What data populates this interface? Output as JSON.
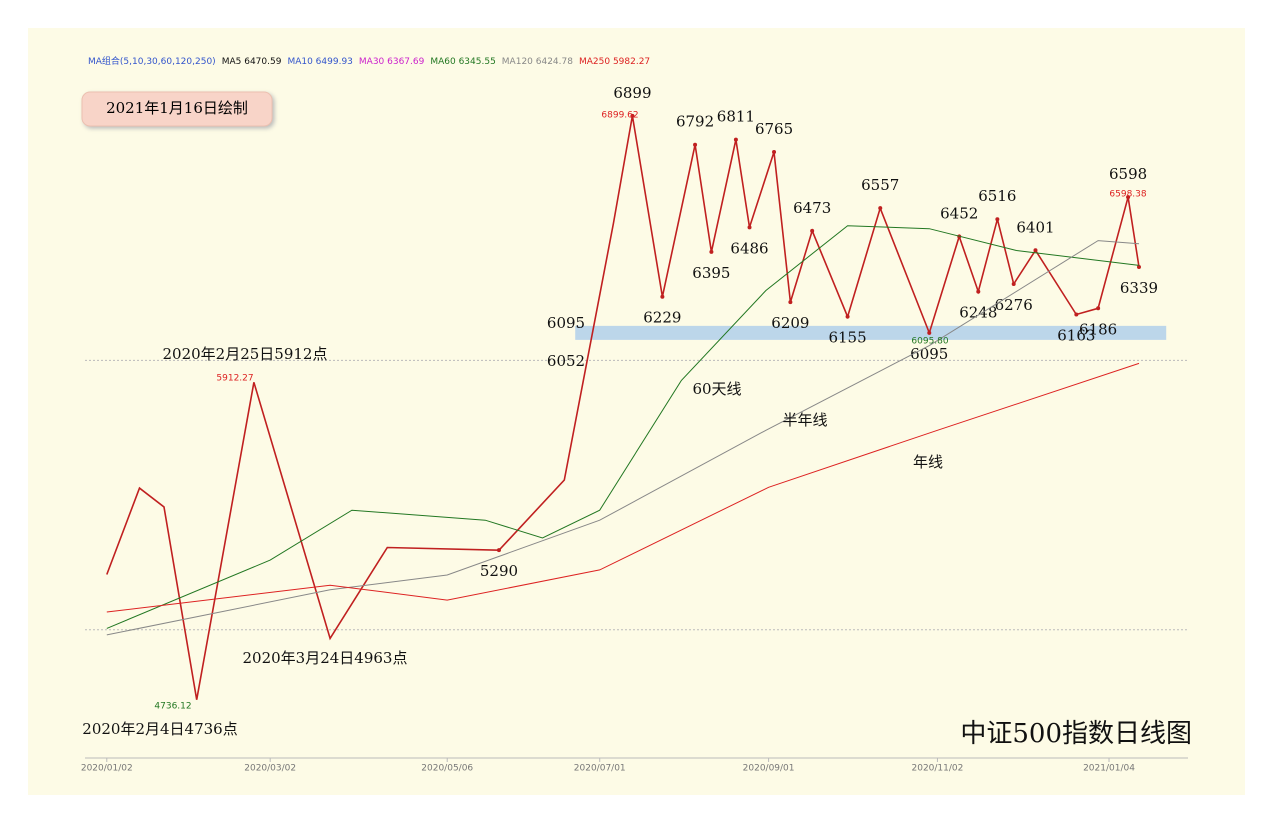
{
  "chart_data": {
    "type": "line",
    "title": "中证500指数日线图",
    "subtitle": "2021年1月16日绘制",
    "legend": [
      {
        "label": "MA组合(5,10,30,60,120,250)",
        "color": "#3355cc"
      },
      {
        "label": "MA5 6470.59",
        "color": "#111111"
      },
      {
        "label": "MA10 6499.93",
        "color": "#3355cc"
      },
      {
        "label": "MA30 6367.69",
        "color": "#cc22cc"
      },
      {
        "label": "MA60 6345.55",
        "color": "#227722"
      },
      {
        "label": "MA120 6424.78",
        "color": "#888888"
      },
      {
        "label": "MA250 5982.27",
        "color": "#dd2222"
      }
    ],
    "xlim": [
      "2019/12/25",
      "2021/02/02"
    ],
    "xticks": [
      "2020/01/02",
      "2020/03/02",
      "2020/05/06",
      "2020/07/01",
      "2020/09/01",
      "2020/11/02",
      "2021/01/04"
    ],
    "ylim": [
      4520,
      7180
    ],
    "reference_lines": [
      5993,
      4995
    ],
    "band": {
      "value": 6095,
      "start": "2020/06/22",
      "end": "2021/01/25",
      "color": "#bcd6ea"
    },
    "series": [
      {
        "name": "中证500",
        "color": "#c02020",
        "x": [
          "2020/01/02",
          "2020/01/14",
          "2020/01/23",
          "2020/02/04",
          "2020/02/25",
          "2020/03/24",
          "2020/04/14",
          "2020/05/25",
          "2020/06/18",
          "2020/07/06",
          "2020/07/13",
          "2020/07/24",
          "2020/08/05",
          "2020/08/11",
          "2020/08/20",
          "2020/08/25",
          "2020/09/03",
          "2020/09/09",
          "2020/09/17",
          "2020/09/30",
          "2020/10/12",
          "2020/10/30",
          "2020/11/10",
          "2020/11/17",
          "2020/11/24",
          "2020/11/30",
          "2020/12/08",
          "2020/12/23",
          "2020/12/31",
          "2021/01/11",
          "2021/01/15"
        ],
        "values": [
          5200,
          5520,
          5450,
          4736,
          5912,
          4963,
          5300,
          5290,
          5550,
          6500,
          6899,
          6229,
          6792,
          6395,
          6811,
          6486,
          6765,
          6209,
          6473,
          6155,
          6557,
          6095,
          6452,
          6248,
          6516,
          6276,
          6401,
          6163,
          6186,
          6598,
          6339
        ],
        "value_labels": [
          null,
          null,
          null,
          null,
          null,
          null,
          null,
          "5290",
          null,
          null,
          "6899",
          "6229",
          "6792",
          "6395",
          "6811",
          "6486",
          "6765",
          "6209",
          "6473",
          "6155",
          "6557",
          "6095",
          "6452",
          "6248",
          "6516",
          "6276",
          "6401",
          "6163",
          "6186",
          "6598",
          "6339"
        ]
      },
      {
        "name": "60天线",
        "color": "#227722",
        "x": [
          "2020/01/02",
          "2020/03/02",
          "2020/04/01",
          "2020/05/20",
          "2020/06/10",
          "2020/07/01",
          "2020/07/31",
          "2020/08/31",
          "2020/09/30",
          "2020/10/30",
          "2020/12/01",
          "2021/01/15"
        ],
        "values": [
          5000,
          5253,
          5438,
          5401,
          5335,
          5438,
          5919,
          6252,
          6492,
          6481,
          6400,
          6345
        ]
      },
      {
        "name": "半年线",
        "color": "#888888",
        "x": [
          "2020/01/02",
          "2020/03/24",
          "2020/05/06",
          "2020/07/01",
          "2020/08/31",
          "2020/10/30",
          "2020/12/31",
          "2021/01/15"
        ],
        "values": [
          4976,
          5143,
          5198,
          5401,
          5734,
          6048,
          6437,
          6425
        ]
      },
      {
        "name": "年线",
        "color": "#dd2222",
        "x": [
          "2020/01/02",
          "2020/03/24",
          "2020/05/06",
          "2020/07/01",
          "2020/09/01",
          "2020/11/02",
          "2021/01/15"
        ],
        "values": [
          5061,
          5160,
          5105,
          5217,
          5523,
          5734,
          5982
        ]
      }
    ],
    "annotations": [
      "2020年2月25日5912点",
      "2020年3月24日4963点",
      "2020年2月4日4736点",
      "6899.62",
      "5912.27",
      "4736.12",
      "6095.80",
      "6598.38",
      "6095",
      "6052"
    ]
  }
}
